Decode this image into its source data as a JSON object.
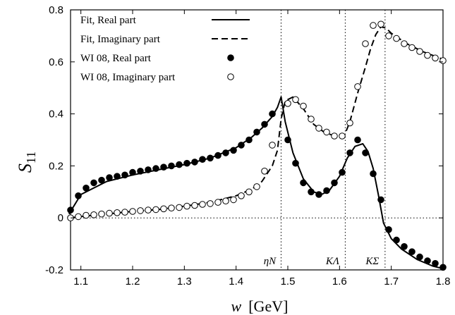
{
  "chart_data": {
    "type": "line",
    "xlabel": {
      "var": "w",
      "unit": "[GeV]"
    },
    "ylabel": {
      "base": "S",
      "sub": "11"
    },
    "xlim": [
      1.08,
      1.8
    ],
    "ylim": [
      -0.2,
      0.8
    ],
    "xticks": [
      "1.1",
      "1.2",
      "1.3",
      "1.4",
      "1.5",
      "1.6",
      "1.7",
      "1.8"
    ],
    "yticks": [
      "-0.2",
      "0",
      "0.2",
      "0.4",
      "0.6",
      "0.8"
    ],
    "thresholds": [
      {
        "label": "ηN",
        "x": 1.487
      },
      {
        "label": "KΛ",
        "x": 1.611
      },
      {
        "label": "KΣ",
        "x": 1.688
      }
    ],
    "legend": {
      "position": "top-left",
      "entries": [
        "Fit, Real part",
        "Fit, Imaginary part",
        "WI 08, Real part",
        "WI 08, Imaginary part"
      ]
    },
    "series": [
      {
        "name": "Fit, Real part",
        "style": "solid",
        "x": [
          1.077,
          1.1,
          1.15,
          1.2,
          1.25,
          1.3,
          1.35,
          1.4,
          1.43,
          1.45,
          1.47,
          1.48,
          1.487,
          1.495,
          1.51,
          1.53,
          1.55,
          1.565,
          1.58,
          1.6,
          1.615,
          1.63,
          1.645,
          1.655,
          1.665,
          1.675,
          1.685,
          1.7,
          1.72,
          1.75,
          1.78,
          1.8
        ],
        "y": [
          0.015,
          0.09,
          0.14,
          0.165,
          0.185,
          0.205,
          0.23,
          0.27,
          0.31,
          0.345,
          0.39,
          0.425,
          0.465,
          0.37,
          0.25,
          0.15,
          0.1,
          0.09,
          0.105,
          0.16,
          0.23,
          0.275,
          0.285,
          0.255,
          0.19,
          0.09,
          -0.02,
          -0.08,
          -0.12,
          -0.16,
          -0.185,
          -0.195
        ]
      },
      {
        "name": "Fit, Imaginary part",
        "style": "dashed",
        "x": [
          1.077,
          1.1,
          1.15,
          1.2,
          1.25,
          1.3,
          1.35,
          1.4,
          1.43,
          1.45,
          1.47,
          1.48,
          1.487,
          1.495,
          1.51,
          1.53,
          1.55,
          1.57,
          1.59,
          1.61,
          1.62,
          1.635,
          1.65,
          1.66,
          1.67,
          1.68,
          1.69,
          1.7,
          1.73,
          1.76,
          1.8
        ],
        "y": [
          0.0,
          0.005,
          0.015,
          0.025,
          0.032,
          0.045,
          0.06,
          0.085,
          0.11,
          0.14,
          0.2,
          0.26,
          0.38,
          0.45,
          0.465,
          0.42,
          0.36,
          0.33,
          0.315,
          0.32,
          0.37,
          0.48,
          0.58,
          0.65,
          0.705,
          0.735,
          0.73,
          0.71,
          0.67,
          0.64,
          0.61
        ]
      },
      {
        "name": "WI 08, Real part",
        "marker": "filled-circle",
        "x": [
          1.08,
          1.095,
          1.11,
          1.125,
          1.14,
          1.155,
          1.17,
          1.185,
          1.2,
          1.215,
          1.23,
          1.245,
          1.26,
          1.275,
          1.29,
          1.305,
          1.32,
          1.335,
          1.35,
          1.365,
          1.38,
          1.395,
          1.41,
          1.425,
          1.44,
          1.455,
          1.47,
          1.5,
          1.515,
          1.53,
          1.545,
          1.56,
          1.575,
          1.59,
          1.605,
          1.62,
          1.635,
          1.65,
          1.665,
          1.68,
          1.695,
          1.71,
          1.725,
          1.74,
          1.755,
          1.77,
          1.785,
          1.8
        ],
        "y": [
          0.03,
          0.085,
          0.115,
          0.135,
          0.145,
          0.155,
          0.16,
          0.165,
          0.175,
          0.18,
          0.185,
          0.19,
          0.195,
          0.2,
          0.205,
          0.21,
          0.215,
          0.225,
          0.23,
          0.24,
          0.25,
          0.26,
          0.28,
          0.3,
          0.33,
          0.36,
          0.4,
          0.3,
          0.21,
          0.135,
          0.1,
          0.09,
          0.105,
          0.135,
          0.175,
          0.25,
          0.3,
          0.25,
          0.17,
          0.07,
          -0.045,
          -0.085,
          -0.11,
          -0.13,
          -0.15,
          -0.165,
          -0.175,
          -0.19
        ]
      },
      {
        "name": "WI 08, Imaginary part",
        "marker": "open-circle",
        "x": [
          1.08,
          1.095,
          1.11,
          1.125,
          1.14,
          1.155,
          1.17,
          1.185,
          1.2,
          1.215,
          1.23,
          1.245,
          1.26,
          1.275,
          1.29,
          1.305,
          1.32,
          1.335,
          1.35,
          1.365,
          1.38,
          1.395,
          1.41,
          1.425,
          1.44,
          1.455,
          1.47,
          1.5,
          1.515,
          1.53,
          1.545,
          1.56,
          1.575,
          1.59,
          1.605,
          1.62,
          1.635,
          1.65,
          1.665,
          1.68,
          1.695,
          1.71,
          1.725,
          1.74,
          1.755,
          1.77,
          1.785,
          1.8
        ],
        "y": [
          0.0,
          0.005,
          0.01,
          0.012,
          0.015,
          0.018,
          0.02,
          0.022,
          0.025,
          0.028,
          0.03,
          0.032,
          0.035,
          0.038,
          0.04,
          0.045,
          0.048,
          0.052,
          0.055,
          0.06,
          0.065,
          0.07,
          0.085,
          0.1,
          0.12,
          0.18,
          0.28,
          0.44,
          0.455,
          0.43,
          0.38,
          0.345,
          0.33,
          0.315,
          0.315,
          0.365,
          0.505,
          0.67,
          0.74,
          0.745,
          0.7,
          0.69,
          0.67,
          0.655,
          0.64,
          0.625,
          0.615,
          0.605
        ]
      }
    ]
  }
}
